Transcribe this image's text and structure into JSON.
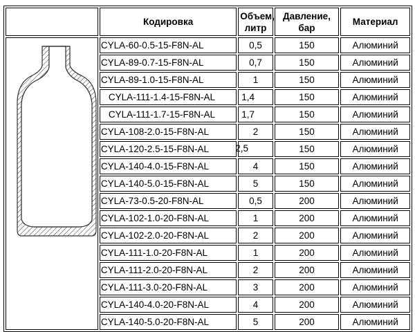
{
  "header": {
    "blank": "",
    "code": "Кодировка",
    "volume": "Объем, литр",
    "pressure": "Давление, бар",
    "material": "Материал"
  },
  "image": {
    "icon": "cylinder-cross-section-drawing"
  },
  "rows": [
    {
      "code": "CYLA-60-0.5-15-F8N-AL",
      "volume": "0,5",
      "pressure": "150",
      "material": "Алюминий"
    },
    {
      "code": "CYLA-89-0.7-15-F8N-AL",
      "volume": "0,7",
      "pressure": "150",
      "material": "Алюминий"
    },
    {
      "code": "CYLA-89-1.0-15-F8N-AL",
      "volume": "1",
      "pressure": "150",
      "material": "Алюминий"
    },
    {
      "code": "CYLA-111-1.4-15-F8N-AL",
      "volume": "1,4",
      "pressure": "150",
      "material": "Алюминий"
    },
    {
      "code": "CYLA-111-1.7-15-F8N-AL",
      "volume": "1,7",
      "pressure": "150",
      "material": "Алюминий"
    },
    {
      "code": "CYLA-108-2.0-15-F8N-AL",
      "volume": "2",
      "pressure": "150",
      "material": "Алюминий"
    },
    {
      "code": "CYLA-120-2.5-15-F8N-AL",
      "volume": "2,5",
      "pressure": "150",
      "material": "Алюминий"
    },
    {
      "code": "CYLA-140-4.0-15-F8N-AL",
      "volume": "4",
      "pressure": "150",
      "material": "Алюминий"
    },
    {
      "code": "CYLA-140-5.0-15-F8N-AL",
      "volume": "5",
      "pressure": "150",
      "material": "Алюминий"
    },
    {
      "code": "CYLA-73-0.5-20-F8N-AL",
      "volume": "0,5",
      "pressure": "200",
      "material": "Алюминий"
    },
    {
      "code": "CYLA-102-1.0-20-F8N-AL",
      "volume": "1",
      "pressure": "200",
      "material": "Алюминий"
    },
    {
      "code": "CYLA-102-2.0-20-F8N-AL",
      "volume": "2",
      "pressure": "200",
      "material": "Алюминий"
    },
    {
      "code": "CYLA-111-1.0-20-F8N-AL",
      "volume": "1",
      "pressure": "200",
      "material": "Алюминий"
    },
    {
      "code": "CYLA-111-2.0-20-F8N-AL",
      "volume": "2",
      "pressure": "200",
      "material": "Алюминий"
    },
    {
      "code": "CYLA-111-3.0-20-F8N-AL",
      "volume": "3",
      "pressure": "200",
      "material": "Алюминий"
    },
    {
      "code": "CYLA-140-4.0-20-F8N-AL",
      "volume": "4",
      "pressure": "200",
      "material": "Алюминий"
    },
    {
      "code": "CYLA-140-5.0-20-F8N-AL",
      "volume": "5",
      "pressure": "200",
      "material": "Алюминий"
    }
  ]
}
